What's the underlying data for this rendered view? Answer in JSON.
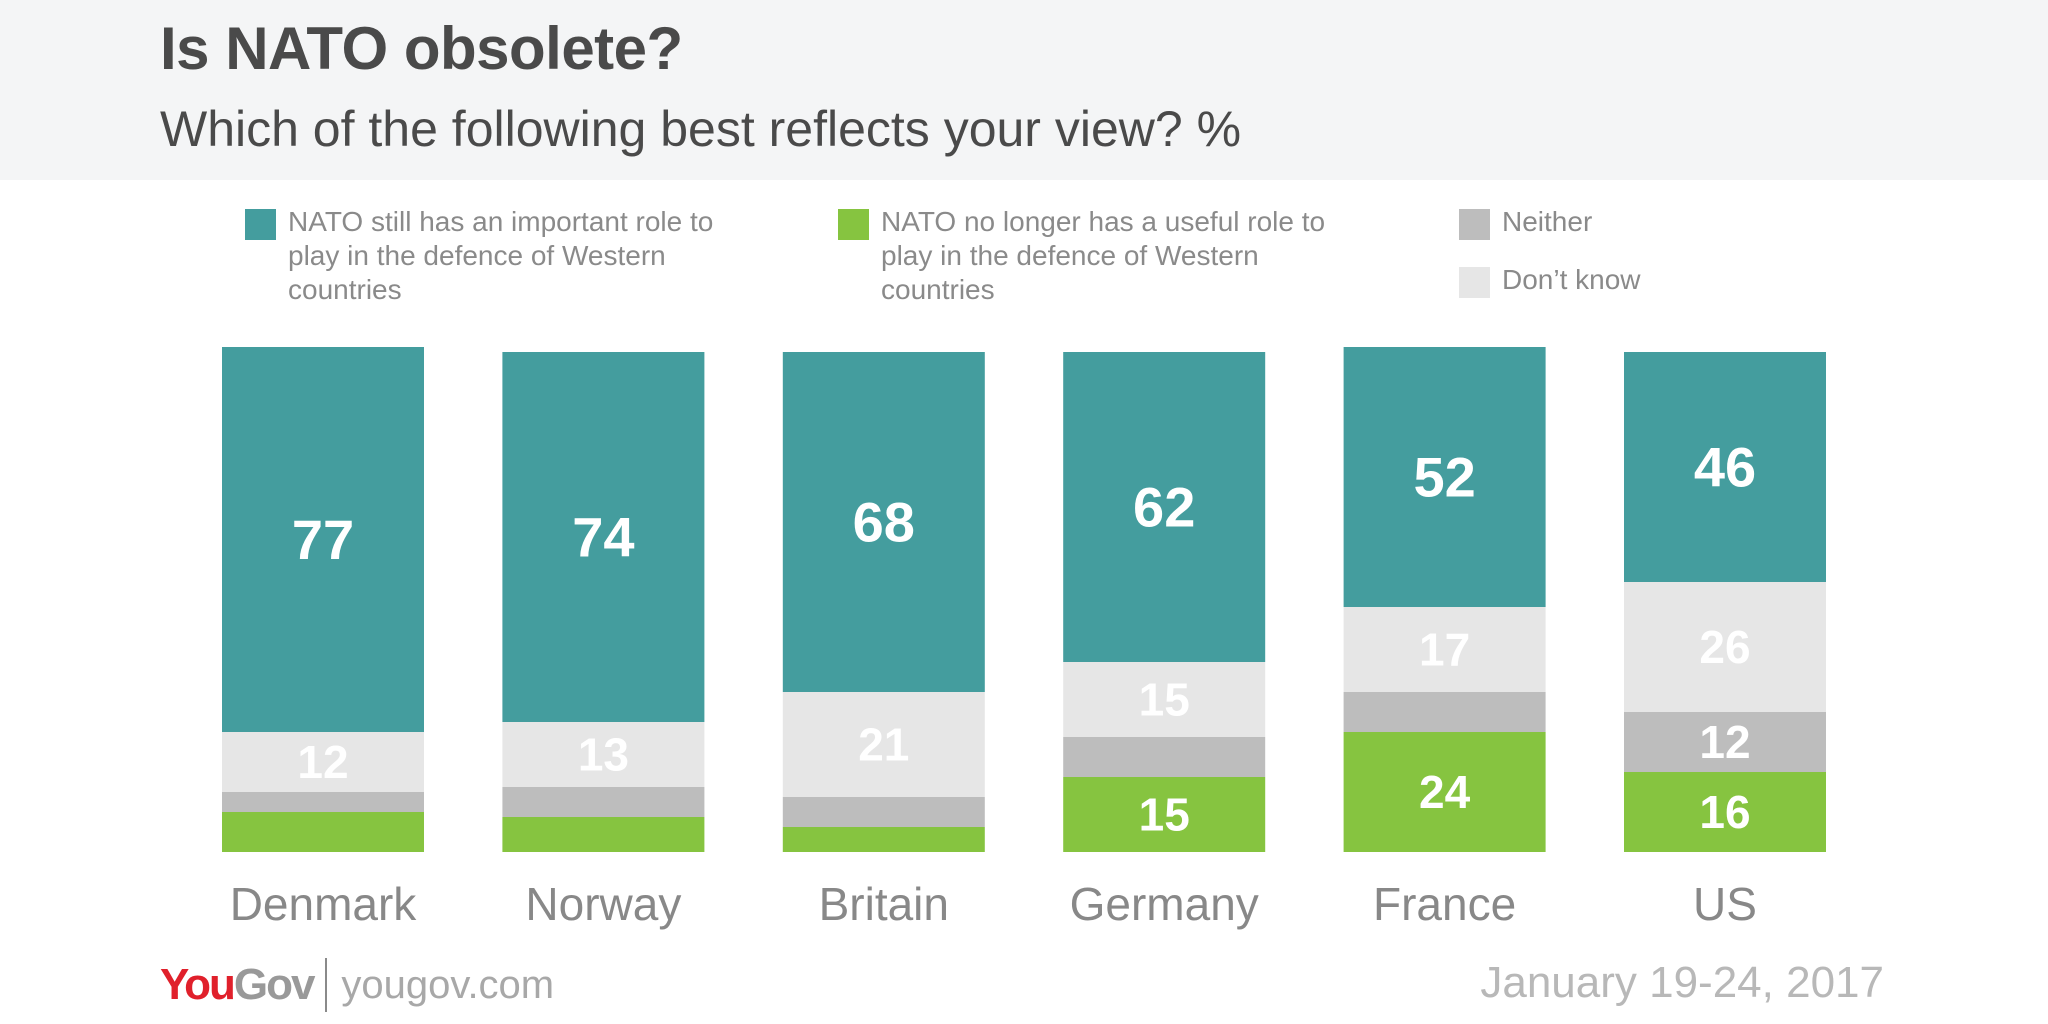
{
  "header": {
    "title": "Is NATO obsolete?",
    "subtitle": "Which of the following best reflects your view? %"
  },
  "legend": [
    {
      "label": "NATO still has an important role to play in the defence of Western countries",
      "color": "#449d9e"
    },
    {
      "label": "NATO no longer has a useful role to play in the defence of Western countries",
      "color": "#86c440"
    },
    {
      "label": "Neither",
      "color": "#bdbdbd"
    },
    {
      "label": "Don’t know",
      "color": "#e6e6e6"
    }
  ],
  "chart_data": {
    "type": "bar",
    "stacked": true,
    "title": "Is NATO obsolete?",
    "subtitle": "Which of the following best reflects your view? %",
    "categories": [
      "Denmark",
      "Norway",
      "Britain",
      "Germany",
      "France",
      "US"
    ],
    "series": [
      {
        "name": "NATO no longer has a useful role to play in the defence of Western countries",
        "color": "#86c440",
        "values": [
          8,
          7,
          5,
          15,
          24,
          16
        ],
        "labels": [
          "",
          "",
          "",
          "15",
          "24",
          "16"
        ]
      },
      {
        "name": "Neither",
        "color": "#bdbdbd",
        "values": [
          4,
          6,
          6,
          8,
          8,
          12
        ],
        "labels": [
          "",
          "",
          "",
          "",
          "",
          "12"
        ]
      },
      {
        "name": "Don’t know",
        "color": "#e6e6e6",
        "values": [
          12,
          13,
          21,
          15,
          17,
          26
        ],
        "labels": [
          "12",
          "13",
          "21",
          "15",
          "17",
          "26"
        ]
      },
      {
        "name": "NATO still has an important role to play in the defence of Western countries",
        "color": "#449d9e",
        "values": [
          77,
          74,
          68,
          62,
          52,
          46
        ],
        "labels": [
          "77",
          "74",
          "68",
          "62",
          "52",
          "46"
        ]
      }
    ],
    "ylim": [
      0,
      100
    ],
    "xlabel": "",
    "ylabel": "%"
  },
  "footer": {
    "brand_you": "You",
    "brand_gov": "Gov",
    "website": "yougov.com",
    "date": "January 19-24, 2017"
  }
}
